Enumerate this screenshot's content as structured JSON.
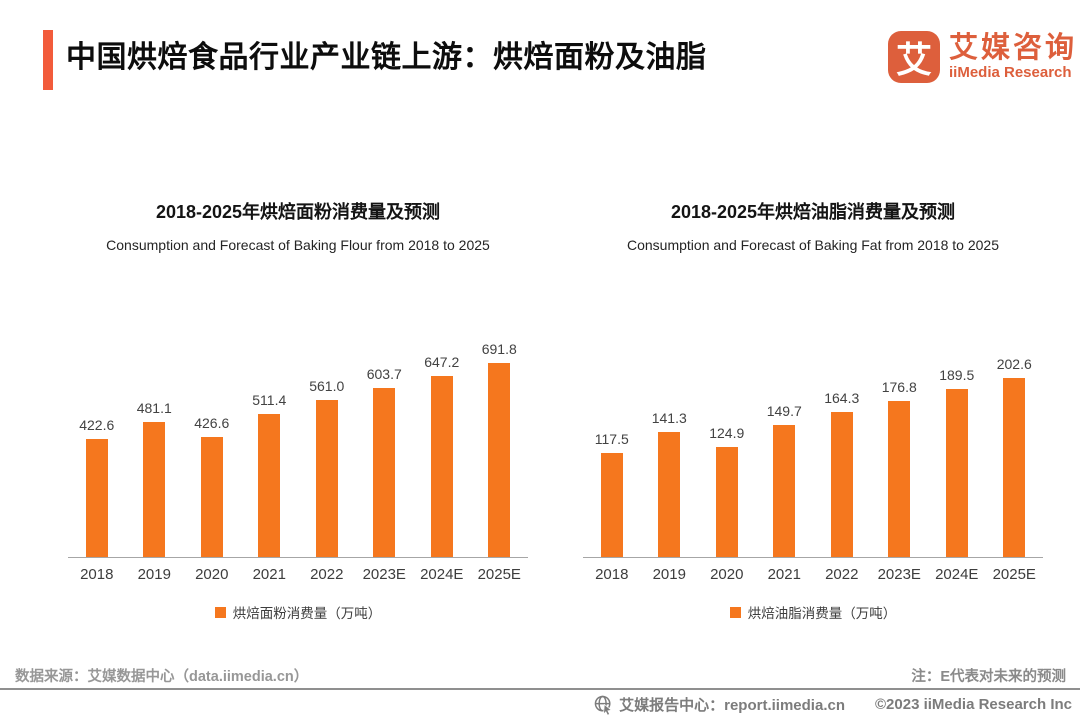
{
  "header": {
    "title": "中国烘焙食品行业产业链上游：烘焙面粉及油脂",
    "logo": {
      "glyph": "艾",
      "name_cn": "艾媒咨询",
      "name_en": "iiMedia Research"
    }
  },
  "colors": {
    "bar": "#F5771E",
    "accent": "#F25B3B",
    "logo": "#DD5F3C",
    "axis": "#A6A6A6",
    "footer_gray": "#8C8C8C"
  },
  "chart_data": [
    {
      "type": "bar",
      "title": "2018-2025年烘焙面粉消费量及预测",
      "subtitle": "Consumption and Forecast of Baking Flour from 2018 to 2025",
      "categories": [
        "2018",
        "2019",
        "2020",
        "2021",
        "2022",
        "2023E",
        "2024E",
        "2025E"
      ],
      "values": [
        422.6,
        481.1,
        426.6,
        511.4,
        561.0,
        603.7,
        647.2,
        691.8
      ],
      "legend": "烘焙面粉消费量（万吨）",
      "ylabel": "万吨",
      "ylim": [
        0,
        820
      ],
      "grid": false,
      "legend_position": "bottom",
      "bar_color": "#F5771E"
    },
    {
      "type": "bar",
      "title": "2018-2025年烘焙油脂消费量及预测",
      "subtitle": "Consumption and Forecast of Baking Fat from 2018 to 2025",
      "categories": [
        "2018",
        "2019",
        "2020",
        "2021",
        "2022",
        "2023E",
        "2024E",
        "2025E"
      ],
      "values": [
        117.5,
        141.3,
        124.9,
        149.7,
        164.3,
        176.8,
        189.5,
        202.6
      ],
      "legend": "烘焙油脂消费量（万吨）",
      "ylabel": "万吨",
      "ylim": [
        0,
        260
      ],
      "grid": false,
      "legend_position": "bottom",
      "bar_color": "#F5771E"
    }
  ],
  "footer": {
    "source": "数据来源：艾媒数据中心（data.iimedia.cn）",
    "note": "注：E代表对未来的预测",
    "report_center": "艾媒报告中心：report.iimedia.cn",
    "copyright": "©2023 iiMedia Research  Inc"
  }
}
